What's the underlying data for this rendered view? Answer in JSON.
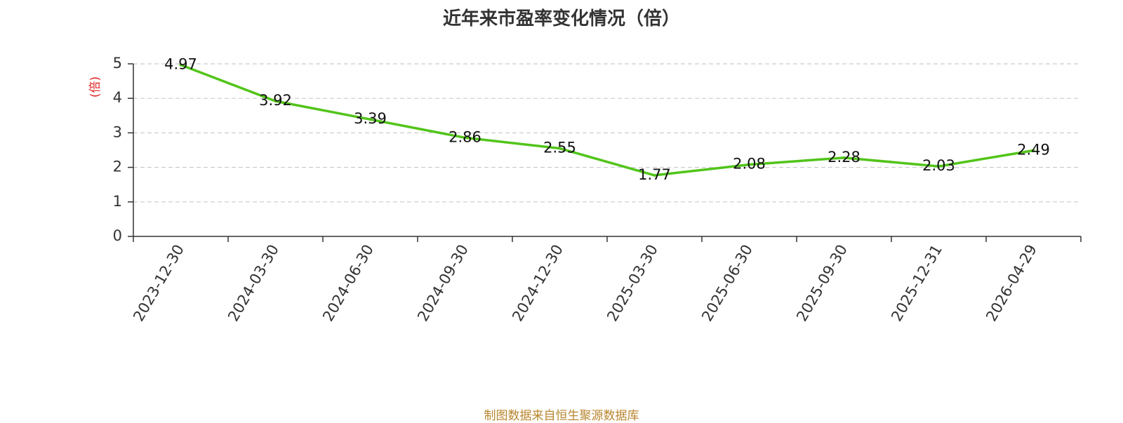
{
  "chart_data": {
    "type": "line",
    "title": "近年来市盈率变化情况（倍）",
    "ylabel": "(倍)",
    "xlabel": "",
    "categories": [
      "2023-12-30",
      "2024-03-30",
      "2024-06-30",
      "2024-09-30",
      "2024-12-30",
      "2025-03-30",
      "2025-06-30",
      "2025-09-30",
      "2025-12-31",
      "2026-04-29"
    ],
    "series": [
      {
        "values": [
          4.97,
          3.92,
          3.39,
          2.86,
          2.55,
          1.77,
          2.08,
          2.28,
          2.03,
          2.49
        ]
      }
    ],
    "data_labels": [
      "4.97",
      "3.92",
      "3.39",
      "2.86",
      "2.55",
      "1.77",
      "2.08",
      "2.28",
      "2.03",
      "2.49"
    ],
    "ylim": [
      0,
      5
    ],
    "yticks": [
      "0",
      "1",
      "2",
      "3",
      "4",
      "5"
    ],
    "grid": "horizontal-dashed",
    "line_color": "#52c41a",
    "label_color": "#e02020"
  },
  "footer": {
    "source": "制图数据来自恒生聚源数据库"
  }
}
